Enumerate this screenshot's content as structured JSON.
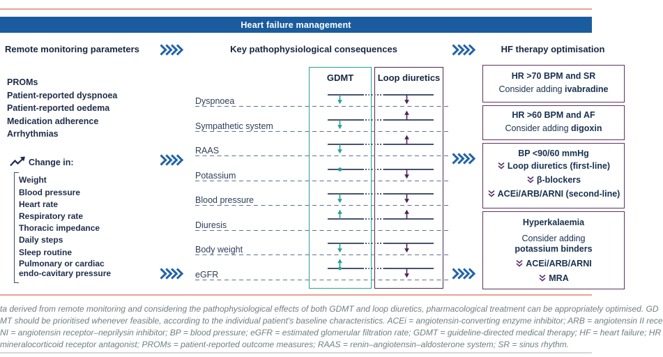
{
  "title_bar": {
    "title": "Heart failure management"
  },
  "flow_headers": {
    "left": "Remote monitoring parameters",
    "middle": "Key pathophysiological consequences",
    "right": "HF therapy optimisation"
  },
  "monitoring": {
    "items": [
      "PROMs",
      "Patient-reported dyspnoea",
      "Patient-reported oedema",
      "Medication adherence",
      "Arrhythmias"
    ],
    "change_in_label": "Change in:",
    "change_items": [
      "Weight",
      "Blood pressure",
      "Heart rate",
      "Respiratory rate",
      "Thoracic impedance",
      "Daily steps",
      "Sleep routine",
      "Pulmonary or cardiac endo-cavitary pressure"
    ]
  },
  "consequences": {
    "gdmt_header": "GDMT",
    "loop_header": "Loop diuretics",
    "rows": [
      {
        "label": "Dyspnoea",
        "gdmt": "down",
        "loop": "down"
      },
      {
        "label": "Sympathetic system",
        "gdmt": "down",
        "loop": "up"
      },
      {
        "label": "RAAS",
        "gdmt": "down",
        "loop": "up"
      },
      {
        "label": "Potassium",
        "gdmt": "dot",
        "loop": "down"
      },
      {
        "label": "Blood pressure",
        "gdmt": "down",
        "loop": "down"
      },
      {
        "label": "Diuresis",
        "gdmt": "up",
        "loop": "up"
      },
      {
        "label": "Body weight",
        "gdmt": "down",
        "loop": "down"
      },
      {
        "label": "eGFR",
        "gdmt": "updot",
        "loop": "down"
      }
    ]
  },
  "therapy": {
    "boxes": [
      {
        "condition": "HR >70 BPM and SR",
        "action_prefix": "Consider adding ",
        "action_bold": "ivabradine"
      },
      {
        "condition": "HR >60 BPM and AF",
        "action_prefix": "Consider adding ",
        "action_bold": "digoxin"
      },
      {
        "condition": "BP <90/60 mmHg",
        "steps": [
          "Loop diuretics (first-line)",
          "β-blockers",
          "ACEi/ARB/ARNI (second-line)"
        ]
      },
      {
        "condition": "Hyperkalaemia",
        "action_prefix": "Consider adding",
        "action_bold": "potassium binders",
        "steps": [
          "ACEi/ARB/ARNI",
          "MRA"
        ]
      }
    ]
  },
  "footnote": {
    "lines": [
      "ta derived from remote monitoring and considering the pathophysiological effects of both GDMT and loop diuretics, pharmacological treatment can be appropriately optimised. GD",
      "MT should be prioritised whenever feasible, according to the individual patient's baseline characteristics. ACEi = angiotensin-converting enzyme inhibitor; ARB = angiotensin II rece",
      "NI = angiotensin receptor–neprilysin inhibitor; BP = blood pressure; eGFR = estimated glomerular filtration rate; GDMT = guideline-directed medical therapy; HF = heart failure; HR",
      "mineralocorticoid receptor antagonist; PROMs = patient-reported outcome measures; RAAS = renin–angiotensin–aldosterone system; SR = sinus rhythm."
    ]
  },
  "icons": {
    "flow": "quad-chevron-right",
    "down_titrate": "double-chevron-down",
    "trend": "trend-up-arrow",
    "marker_down": "arrow-down-from-line",
    "marker_up": "arrow-up-from-line",
    "marker_dot": "dot-on-line",
    "marker_updot": "arrow-up-with-dot"
  },
  "colors": {
    "blue_bar": "#1a5c9e",
    "salmon": "#eba291",
    "teal": "#29a09a",
    "purple": "#4a2753",
    "box_border": "#5d3160",
    "chev_blue": "#2263a8"
  }
}
